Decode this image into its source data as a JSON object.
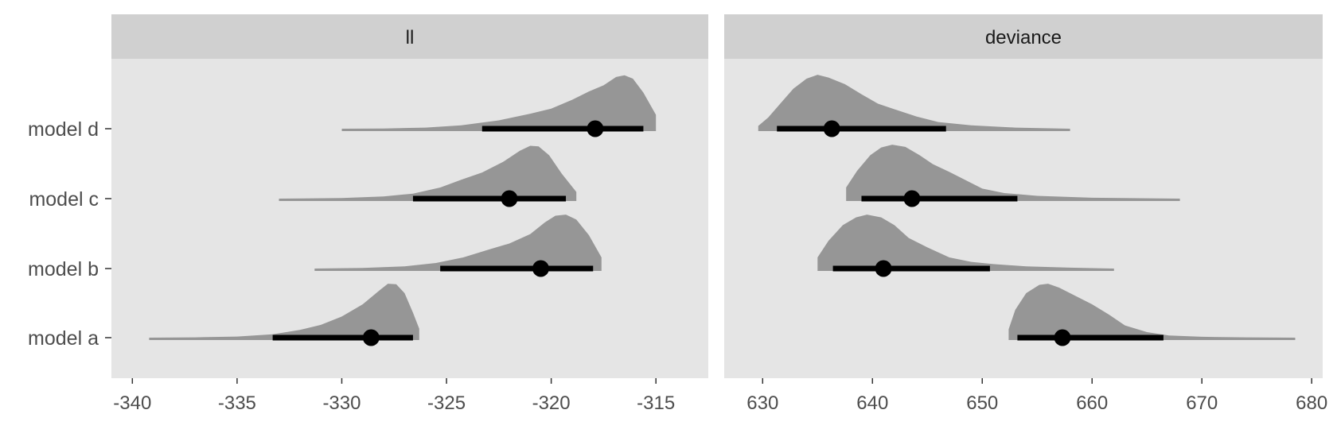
{
  "chart_data": {
    "type": "halfeye",
    "facets": [
      {
        "name": "ll",
        "xlim": [
          -341,
          -312.5
        ],
        "xticks": [
          -340,
          -335,
          -330,
          -325,
          -320,
          -315
        ],
        "categories": [
          "model a",
          "model b",
          "model c",
          "model d"
        ],
        "series": [
          {
            "category": "model a",
            "point": -328.6,
            "interval": [
              -333.3,
              -326.6
            ],
            "density": [
              [
                -339.2,
                0.0
              ],
              [
                -337,
                0.005
              ],
              [
                -335,
                0.02
              ],
              [
                -333.3,
                0.06
              ],
              [
                -332,
                0.14
              ],
              [
                -331,
                0.23
              ],
              [
                -330,
                0.38
              ],
              [
                -329,
                0.6
              ],
              [
                -328.2,
                0.85
              ],
              [
                -327.8,
                0.97
              ],
              [
                -327.4,
                0.96
              ],
              [
                -327,
                0.8
              ],
              [
                -326.6,
                0.45
              ],
              [
                -326.3,
                0.16
              ]
            ]
          },
          {
            "category": "model b",
            "point": -320.5,
            "interval": [
              -325.3,
              -318.0
            ],
            "density": [
              [
                -331.3,
                0.0
              ],
              [
                -329,
                0.01
              ],
              [
                -327,
                0.04
              ],
              [
                -325.5,
                0.1
              ],
              [
                -324.2,
                0.2
              ],
              [
                -323,
                0.34
              ],
              [
                -322,
                0.45
              ],
              [
                -321,
                0.62
              ],
              [
                -320.3,
                0.83
              ],
              [
                -319.8,
                0.95
              ],
              [
                -319.3,
                0.97
              ],
              [
                -318.8,
                0.88
              ],
              [
                -318.2,
                0.6
              ],
              [
                -317.6,
                0.2
              ]
            ]
          },
          {
            "category": "model c",
            "point": -322.0,
            "interval": [
              -326.6,
              -319.3
            ],
            "density": [
              [
                -333.0,
                0.0
              ],
              [
                -330,
                0.01
              ],
              [
                -328,
                0.04
              ],
              [
                -326.6,
                0.09
              ],
              [
                -325.3,
                0.2
              ],
              [
                -324.3,
                0.34
              ],
              [
                -323.3,
                0.47
              ],
              [
                -322.3,
                0.66
              ],
              [
                -321.5,
                0.86
              ],
              [
                -321.0,
                0.95
              ],
              [
                -320.6,
                0.94
              ],
              [
                -320.1,
                0.78
              ],
              [
                -319.5,
                0.45
              ],
              [
                -318.8,
                0.12
              ]
            ]
          },
          {
            "category": "model d",
            "point": -317.9,
            "interval": [
              -323.3,
              -315.6
            ],
            "density": [
              [
                -330.0,
                0.0
              ],
              [
                -328,
                0.005
              ],
              [
                -326,
                0.02
              ],
              [
                -324.3,
                0.06
              ],
              [
                -322.5,
                0.15
              ],
              [
                -321,
                0.27
              ],
              [
                -320,
                0.36
              ],
              [
                -319,
                0.52
              ],
              [
                -318.2,
                0.67
              ],
              [
                -317.5,
                0.78
              ],
              [
                -316.9,
                0.93
              ],
              [
                -316.5,
                0.96
              ],
              [
                -316.1,
                0.9
              ],
              [
                -315.6,
                0.65
              ],
              [
                -315.0,
                0.25
              ]
            ]
          }
        ]
      },
      {
        "name": "deviance",
        "xlim": [
          626.5,
          681
        ],
        "xticks": [
          630,
          640,
          650,
          660,
          670,
          680
        ],
        "categories": [
          "model a",
          "model b",
          "model c",
          "model d"
        ],
        "series": [
          {
            "category": "model a",
            "point": 657.3,
            "interval": [
              653.2,
              666.5
            ],
            "density": [
              [
                652.4,
                0.15
              ],
              [
                653.0,
                0.5
              ],
              [
                654.0,
                0.8
              ],
              [
                655.2,
                0.95
              ],
              [
                656.0,
                0.97
              ],
              [
                657.0,
                0.9
              ],
              [
                658.5,
                0.75
              ],
              [
                660.0,
                0.6
              ],
              [
                661.5,
                0.42
              ],
              [
                663,
                0.22
              ],
              [
                665,
                0.1
              ],
              [
                667,
                0.04
              ],
              [
                670,
                0.015
              ],
              [
                674,
                0.005
              ],
              [
                678.5,
                0.0
              ]
            ]
          },
          {
            "category": "model b",
            "point": 641.0,
            "interval": [
              636.4,
              650.7
            ],
            "density": [
              [
                635.0,
                0.2
              ],
              [
                636.0,
                0.5
              ],
              [
                637.3,
                0.78
              ],
              [
                638.5,
                0.92
              ],
              [
                639.5,
                0.97
              ],
              [
                640.8,
                0.92
              ],
              [
                642.0,
                0.78
              ],
              [
                643.3,
                0.55
              ],
              [
                645.0,
                0.38
              ],
              [
                647,
                0.2
              ],
              [
                649,
                0.12
              ],
              [
                651,
                0.08
              ],
              [
                654,
                0.04
              ],
              [
                658,
                0.015
              ],
              [
                662,
                0.0
              ]
            ]
          },
          {
            "category": "model c",
            "point": 643.6,
            "interval": [
              639.0,
              653.2
            ],
            "density": [
              [
                637.6,
                0.2
              ],
              [
                638.6,
                0.5
              ],
              [
                639.8,
                0.78
              ],
              [
                640.8,
                0.92
              ],
              [
                641.8,
                0.97
              ],
              [
                643.0,
                0.93
              ],
              [
                644.3,
                0.78
              ],
              [
                645.5,
                0.62
              ],
              [
                647.0,
                0.48
              ],
              [
                648.5,
                0.33
              ],
              [
                650,
                0.18
              ],
              [
                652,
                0.1
              ],
              [
                655,
                0.05
              ],
              [
                660,
                0.015
              ],
              [
                668,
                0.0
              ]
            ]
          },
          {
            "category": "model d",
            "point": 636.3,
            "interval": [
              631.3,
              646.7
            ],
            "density": [
              [
                629.6,
                0.05
              ],
              [
                630.5,
                0.2
              ],
              [
                631.6,
                0.45
              ],
              [
                632.8,
                0.72
              ],
              [
                634.0,
                0.9
              ],
              [
                635.0,
                0.97
              ],
              [
                636.0,
                0.92
              ],
              [
                637.5,
                0.8
              ],
              [
                639.0,
                0.62
              ],
              [
                640.5,
                0.45
              ],
              [
                642,
                0.35
              ],
              [
                644,
                0.22
              ],
              [
                646,
                0.12
              ],
              [
                649,
                0.06
              ],
              [
                653,
                0.02
              ],
              [
                658,
                0.0
              ]
            ]
          }
        ]
      }
    ]
  }
}
